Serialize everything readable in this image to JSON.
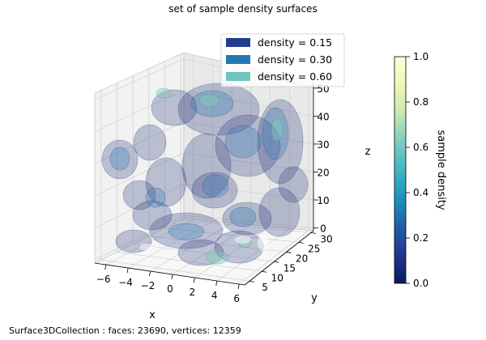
{
  "chart_data": {
    "type": "3d-isosurface",
    "title": "set of sample density surfaces",
    "xlabel": "x",
    "ylabel": "y",
    "zlabel": "z",
    "x_ticks": [
      "−6",
      "−4",
      "−2",
      "0",
      "2",
      "4",
      "6"
    ],
    "y_ticks": [
      "5",
      "10",
      "15",
      "20",
      "25",
      "30"
    ],
    "z_ticks": [
      "0",
      "10",
      "20",
      "30",
      "40",
      "50"
    ],
    "xlim": [
      -7,
      6.5
    ],
    "ylim": [
      3,
      31
    ],
    "zlim": [
      -1,
      52
    ],
    "legend_position": "top-right",
    "legend": [
      {
        "label": "density = 0.15",
        "color": "#253b8e"
      },
      {
        "label": "density = 0.30",
        "color": "#2477b4"
      },
      {
        "label": "density = 0.60",
        "color": "#6cc6be"
      }
    ],
    "colorbar": {
      "label": "sample density",
      "ticks": [
        "0.0",
        "0.2",
        "0.4",
        "0.6",
        "0.8",
        "1.0"
      ],
      "range": [
        0.0,
        1.0
      ],
      "colormap": "YlGnBu_r"
    },
    "grid": true
  },
  "status_bar": {
    "text": "Surface3DCollection :  faces: 23690,  vertices: 12359"
  }
}
